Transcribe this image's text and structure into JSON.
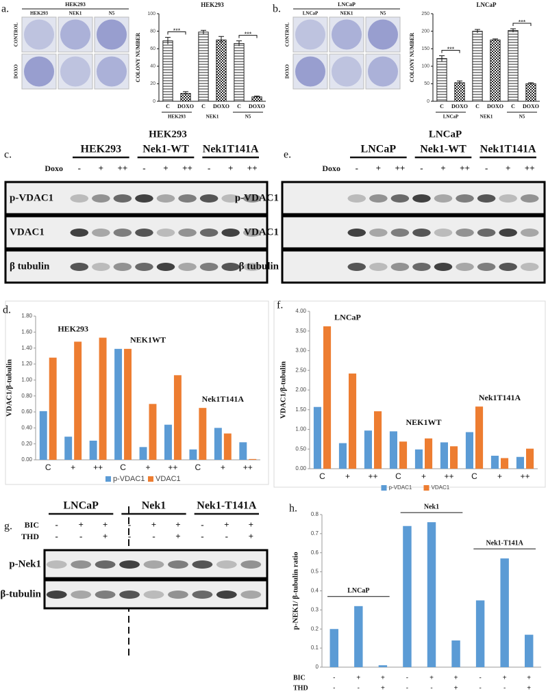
{
  "colony_panels": [
    {
      "panel_label": "a.",
      "title": "HEK293",
      "columns": [
        "HEK293",
        "NEK1",
        "N5"
      ],
      "rows": [
        "CONTROL",
        "DOXO"
      ]
    },
    {
      "panel_label": "b.",
      "title": "LNCaP",
      "columns": [
        "LNCaP",
        "NEK1",
        "N5"
      ],
      "rows": [
        "CONTROL",
        "DOXO"
      ]
    }
  ],
  "blots": [
    {
      "panel_label": "c.",
      "title": "HEK293",
      "groups": [
        "HEK293",
        "Nek1-WT",
        "Nek1T141A"
      ],
      "treatments": [
        {
          "label": "Doxo",
          "lanes": [
            "-",
            "+",
            "++",
            "-",
            "+",
            "++",
            "-",
            "+",
            "++"
          ]
        }
      ],
      "rows": [
        "p-VDAC1",
        "VDAC1",
        "β tubulin"
      ]
    },
    {
      "panel_label": "e.",
      "title": "LNCaP",
      "groups": [
        "LNCaP",
        "Nek1-WT",
        "Nek1T141A"
      ],
      "treatments": [
        {
          "label": "Doxo",
          "lanes": [
            "-",
            "+",
            "++",
            "-",
            "+",
            "++",
            "-",
            "+",
            "++"
          ]
        }
      ],
      "rows": [
        "p-VDAC1",
        "VDAC1",
        "β tubulin"
      ]
    },
    {
      "panel_label": "g.",
      "groups": [
        "LNCaP",
        "Nek1",
        "Nek1-T141A"
      ],
      "treatments": [
        {
          "label": "BIC",
          "lanes": [
            "-",
            "+",
            "+",
            "-",
            "+",
            "+",
            "-",
            "+",
            "+"
          ]
        },
        {
          "label": "THD",
          "lanes": [
            "-",
            "-",
            "+",
            "-",
            "-",
            "+",
            "-",
            "-",
            "+"
          ]
        }
      ],
      "rows": [
        "p-Nek1",
        "β-tubulin"
      ]
    }
  ],
  "chart_data": [
    {
      "type": "bar",
      "title": "HEK293",
      "ylabel": "COLONY NUMBER",
      "categories": [
        "C",
        "DOXO",
        "C",
        "DOXO",
        "C",
        "DOXO"
      ],
      "groups": [
        "HEK293",
        "NEK1",
        "N5"
      ],
      "group_significance": [
        "***",
        null,
        "***"
      ],
      "values": [
        69,
        9,
        79,
        70,
        66,
        5
      ],
      "errors": [
        4,
        2,
        2,
        4,
        3,
        1
      ],
      "color": "#222222",
      "ylim": [
        0,
        100
      ],
      "yticks": [
        0,
        20,
        40,
        60,
        80,
        100
      ]
    },
    {
      "type": "bar",
      "title": "LNCaP",
      "ylabel": "COLONY NUMBER",
      "categories": [
        "C",
        "DOXO",
        "C",
        "DOXO",
        "C",
        "DOXO"
      ],
      "groups": [
        "LNCaP",
        "NEK1",
        "N5"
      ],
      "group_significance": [
        "***",
        null,
        "***"
      ],
      "values": [
        122,
        53,
        200,
        175,
        202,
        50
      ],
      "errors": [
        8,
        5,
        5,
        3,
        5,
        3
      ],
      "color": "#222222",
      "ylim": [
        0,
        250
      ],
      "yticks": [
        0,
        50,
        100,
        150,
        200,
        250
      ]
    },
    {
      "type": "bar",
      "panel_label": "d.",
      "ylabel": "VDAC1/β-tubulin",
      "categories": [
        "C",
        "+",
        "++",
        "C",
        "+",
        "++",
        "C",
        "+",
        "++"
      ],
      "group_labels": [
        "HEK293",
        "NEK1WT",
        "Nek1T141A"
      ],
      "series": [
        {
          "name": "p-VDAC1",
          "color": "#5b9bd5",
          "values": [
            0.61,
            0.29,
            0.24,
            1.39,
            0.16,
            0.44,
            0.13,
            0.4,
            0.22
          ]
        },
        {
          "name": "VDAC1",
          "color": "#ed7d31",
          "values": [
            1.28,
            1.48,
            1.53,
            1.39,
            0.7,
            1.06,
            0.65,
            0.33,
            0.01
          ]
        }
      ],
      "ylim": [
        0,
        1.8
      ],
      "yticks": [
        {
          "value": 0,
          "label": "0.00"
        },
        {
          "value": 0.2,
          "label": "0.20"
        },
        {
          "value": 0.4,
          "label": "0.40"
        },
        {
          "value": 0.6,
          "label": "0.60"
        },
        {
          "value": 0.8,
          "label": "0.80"
        },
        {
          "value": 1,
          "label": "1.00"
        },
        {
          "value": 1.2,
          "label": "1.20"
        },
        {
          "value": 1.4,
          "label": "1.40"
        },
        {
          "value": 1.6,
          "label": "1.60"
        },
        {
          "value": 1.8,
          "label": "1.80"
        }
      ],
      "legend": "bottom"
    },
    {
      "type": "bar",
      "panel_label": "f.",
      "ylabel": "VDAC1/β-tubulin",
      "categories": [
        "C",
        "+",
        "++",
        "C",
        "+",
        "++",
        "C",
        "+",
        "++"
      ],
      "group_labels": [
        "LNCaP",
        "NEK1WT",
        "Nek1T141A"
      ],
      "series": [
        {
          "name": "p-VDAC1",
          "color": "#5b9bd5",
          "values": [
            1.57,
            0.65,
            0.97,
            0.95,
            0.49,
            0.67,
            0.93,
            0.33,
            0.3
          ]
        },
        {
          "name": "VDAC1",
          "color": "#ed7d31",
          "values": [
            3.62,
            2.42,
            1.46,
            0.69,
            0.77,
            0.57,
            1.58,
            0.27,
            0.51
          ]
        }
      ],
      "ylim": [
        0,
        4
      ],
      "yticks": [
        {
          "value": 0,
          "label": "0.00"
        },
        {
          "value": 0.5,
          "label": "0.50"
        },
        {
          "value": 1,
          "label": "1.00"
        },
        {
          "value": 1.5,
          "label": "1.50"
        },
        {
          "value": 2,
          "label": "2.00"
        },
        {
          "value": 2.5,
          "label": "2.50"
        },
        {
          "value": 3,
          "label": "3.00"
        },
        {
          "value": 3.5,
          "label": "3.50"
        },
        {
          "value": 4,
          "label": "4.00"
        }
      ],
      "legend": "bottom"
    },
    {
      "type": "bar",
      "panel_label": "h.",
      "ylabel": "p-NEK1/ β-tubulin ratio",
      "values": [
        0.2,
        0.32,
        0.01,
        0.74,
        0.76,
        0.14,
        0.35,
        0.57,
        0.17
      ],
      "color": "#5b9bd5",
      "group_labels": [
        "LNCaP",
        "Nek1",
        "Nek1-T141A"
      ],
      "treatments": [
        {
          "label": "BIC",
          "lanes": [
            "-",
            "+",
            "+",
            "-",
            "+",
            "+",
            "-",
            "+",
            "+"
          ]
        },
        {
          "label": "THD",
          "lanes": [
            "-",
            "-",
            "+",
            "-",
            "-",
            "+",
            "-",
            "-",
            "+"
          ]
        }
      ],
      "ylim": [
        0,
        0.8
      ],
      "yticks": [
        0,
        0.1,
        0.2,
        0.3,
        0.4,
        0.5,
        0.6,
        0.7,
        0.8
      ]
    }
  ]
}
